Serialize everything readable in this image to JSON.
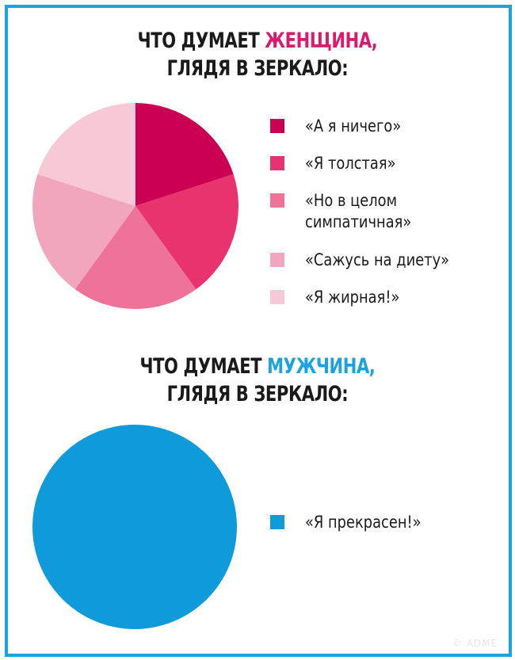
{
  "woman": {
    "title_prefix": "ЧТО ДУМАЕТ ",
    "title_highlight": "ЖЕНЩИНА,",
    "title_line2": "ГЛЯДЯ В ЗЕРКАЛО:",
    "highlight_color": "#d81b6a"
  },
  "man": {
    "title_prefix": "ЧТО ДУМАЕТ ",
    "title_highlight": "МУЖЧИНА,",
    "title_line2": "ГЛЯДЯ В ЗЕРКАЛО:",
    "highlight_color": "#1aa3e0"
  },
  "chart_data": [
    {
      "type": "pie",
      "series": [
        {
          "label": "«А я ничего»",
          "value": 20,
          "color": "#cc0052"
        },
        {
          "label": "«Я толстая»",
          "value": 20,
          "color": "#e8336e"
        },
        {
          "label": "«Но в целом симпатичная»",
          "value": 20,
          "color": "#ee7399"
        },
        {
          "label": "«Сажусь на диету»",
          "value": 20,
          "color": "#f2a6bd"
        },
        {
          "label": "«Я жирная!»",
          "value": 20,
          "color": "#f7c9d6"
        }
      ],
      "legend": "right"
    },
    {
      "type": "pie",
      "series": [
        {
          "label": "«Я прекрасен!»",
          "value": 100,
          "color": "#0f9ada"
        }
      ],
      "legend": "right"
    }
  ],
  "legend_lines": [
    [
      "«А я ничего»"
    ],
    [
      "«Я толстая»"
    ],
    [
      "«Но в целом",
      "симпатичная»"
    ],
    [
      "«Сажусь на диету»"
    ],
    [
      "«Я жирная!»"
    ]
  ],
  "watermark": "© ADME"
}
